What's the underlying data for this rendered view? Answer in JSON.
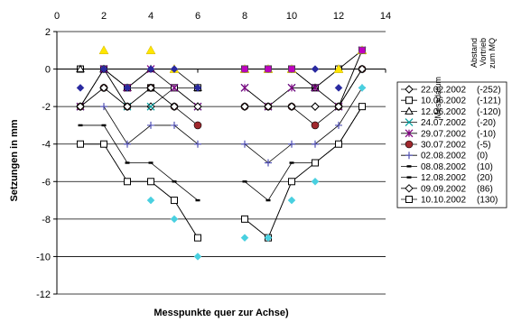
{
  "chart_data": {
    "type": "line",
    "xlabel": "Messpunkte quer zur Achse)",
    "ylabel": "Setzungen in mm",
    "xlim": [
      0,
      14
    ],
    "ylim": [
      -12,
      2
    ],
    "x_ticks": [
      0,
      2,
      4,
      6,
      8,
      10,
      12,
      14
    ],
    "y_ticks": [
      2,
      0,
      -2,
      -4,
      -6,
      -8,
      -10,
      -12
    ],
    "x_axis_position": "top",
    "grid": "horizontal",
    "legend": {
      "position": "right",
      "header_date": "Messdatum",
      "header_distance": [
        "Abstand",
        "Vortrieb",
        "zum MQ"
      ]
    },
    "series": [
      {
        "name": "22.02.2002",
        "distance": "(-252)",
        "color": "#000000",
        "marker": "diamond-open",
        "x": [
          1,
          2,
          3,
          4,
          5,
          6,
          8,
          9,
          10,
          11,
          12,
          13
        ],
        "y": [
          -2,
          0,
          -2,
          -2,
          -2,
          -2,
          -2,
          -2,
          -2,
          -2,
          -2,
          0
        ]
      },
      {
        "name": "10.06.2002",
        "distance": "(-121)",
        "color": "#000000",
        "marker": "square-open",
        "x": [
          1,
          2,
          3,
          4,
          5,
          6,
          8,
          9,
          10,
          11,
          12,
          13
        ],
        "y": [
          0,
          0,
          -1,
          -1,
          -1,
          -1,
          0,
          0,
          0,
          -1,
          0,
          1
        ]
      },
      {
        "name": "12.06.2002",
        "distance": "(-120)",
        "color": "#000000",
        "marker": "triangle-open",
        "x": [
          1,
          2,
          3,
          4,
          5,
          6,
          8,
          9,
          10,
          11,
          12,
          13
        ],
        "y": [
          0,
          0,
          -1,
          0,
          0,
          -1,
          0,
          0,
          0,
          -1,
          0,
          1
        ]
      },
      {
        "name": "24.07.2002",
        "distance": "(-20)",
        "color": "#00a0a0",
        "marker": "x",
        "x": [
          1,
          2,
          3,
          4,
          5,
          6,
          8,
          9,
          10,
          11,
          12,
          13
        ],
        "y": [
          -2,
          0,
          -2,
          -2,
          -1,
          -2,
          -1,
          -2,
          -1,
          -1,
          -2,
          1
        ]
      },
      {
        "name": "29.07.2002",
        "distance": "(-10)",
        "color": "#800080",
        "marker": "star",
        "x": [
          1,
          2,
          3,
          4,
          5,
          6,
          8,
          9,
          10,
          11,
          12,
          13
        ],
        "y": [
          -2,
          0,
          -1,
          0,
          -1,
          -2,
          -1,
          -2,
          -1,
          -1,
          -2,
          1
        ]
      },
      {
        "name": "30.07.2002",
        "distance": "(-5)",
        "color": "#a0282d",
        "marker": "circle-filled",
        "x": [
          1,
          2,
          3,
          4,
          5,
          6,
          8,
          9,
          10,
          11,
          12,
          13
        ],
        "y": [
          -2,
          -1,
          -2,
          -1,
          -2,
          -3,
          -2,
          -2,
          -2,
          -3,
          -2,
          0
        ]
      },
      {
        "name": "02.08.2002",
        "distance": "(0)",
        "color": "#5050b4",
        "marker": "plus",
        "x": [
          1,
          2,
          3,
          4,
          5,
          6,
          8,
          9,
          10,
          11,
          12,
          13
        ],
        "y": [
          -2,
          -2,
          -4,
          -3,
          -3,
          -4,
          -4,
          -5,
          -4,
          -4,
          -3,
          -1
        ]
      },
      {
        "name": "08.08.2002",
        "distance": "(10)",
        "color": "#000000",
        "marker": "dash",
        "x": [
          1,
          2,
          3,
          4,
          5,
          6,
          8,
          9,
          10,
          11,
          12,
          13
        ],
        "y": [
          -3,
          -3,
          -5,
          -5,
          -6,
          -7,
          -6,
          -7,
          -5,
          -5,
          -4,
          -2
        ]
      },
      {
        "name": "12.08.2002",
        "distance": "(20)",
        "color": "#000000",
        "marker": "dash",
        "x": [
          1,
          2,
          3,
          4,
          5,
          6,
          8,
          9,
          10,
          11,
          12,
          13
        ],
        "y": [
          -4,
          -4,
          -6,
          -6,
          -7,
          -9,
          -8,
          -9,
          -6,
          -5,
          -4,
          -2
        ]
      },
      {
        "name": "09.09.2002",
        "distance": "(86)",
        "color": "#000000",
        "marker": "diamond-open",
        "x": [
          1,
          2,
          3,
          4,
          5,
          6,
          8,
          9,
          10,
          11,
          12,
          13
        ],
        "y": [
          -2,
          -1,
          -2,
          -1,
          -2,
          -2,
          -2,
          -2,
          -2,
          -2,
          -2,
          0
        ]
      },
      {
        "name": "10.10.2002",
        "distance": "(130)",
        "color": "#000000",
        "marker": "square-open",
        "x": [
          1,
          2,
          3,
          4,
          5,
          6,
          8,
          9,
          10,
          11,
          12,
          13
        ],
        "y": [
          -4,
          -4,
          -6,
          -6,
          -7,
          -9,
          -8,
          -9,
          -6,
          -5,
          -4,
          -2
        ]
      }
    ],
    "extra_marker_series": [
      {
        "color": "#ffe600",
        "marker": "triangle-filled",
        "x": [
          2,
          4,
          5,
          8,
          9,
          10,
          12,
          13
        ],
        "y": [
          1,
          1,
          0,
          0,
          0,
          0,
          0,
          1
        ]
      },
      {
        "color": "#2a2aa0",
        "marker": "diamond-filled",
        "x": [
          1,
          2,
          3,
          4,
          5,
          6,
          8,
          9,
          10,
          11,
          12,
          13
        ],
        "y": [
          -1,
          0,
          -1,
          0,
          0,
          -1,
          0,
          0,
          0,
          0,
          -1,
          1
        ]
      },
      {
        "color": "#c000c0",
        "marker": "square-filled",
        "x": [
          8,
          9,
          10,
          13
        ],
        "y": [
          0,
          0,
          0,
          1
        ]
      },
      {
        "color": "#49d0e0",
        "marker": "diamond-filled",
        "x": [
          4,
          5,
          6,
          8,
          9,
          10,
          11,
          13
        ],
        "y": [
          -7,
          -8,
          -10,
          -9,
          -9,
          -7,
          -6,
          -1
        ]
      }
    ]
  }
}
